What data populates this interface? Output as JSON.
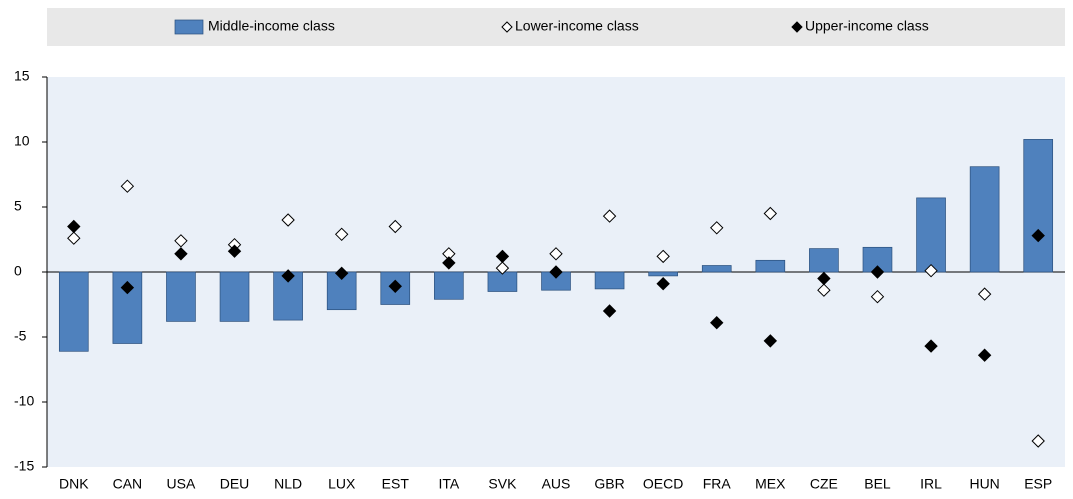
{
  "chart_data": {
    "type": "bar",
    "categories": [
      "DNK",
      "CAN",
      "USA",
      "DEU",
      "NLD",
      "LUX",
      "EST",
      "ITA",
      "SVK",
      "AUS",
      "GBR",
      "OECD",
      "FRA",
      "MEX",
      "CZE",
      "BEL",
      "IRL",
      "HUN",
      "ESP"
    ],
    "series": [
      {
        "name": "Middle-income class",
        "type": "bar",
        "color": "#4f81bd",
        "values": [
          -6.1,
          -5.5,
          -3.8,
          -3.8,
          -3.7,
          -2.9,
          -2.5,
          -2.1,
          -1.5,
          -1.4,
          -1.3,
          -0.3,
          0.5,
          0.9,
          1.8,
          1.9,
          5.7,
          8.1,
          10.2
        ]
      },
      {
        "name": "Lower-income class",
        "type": "diamond",
        "color": "#ffffff",
        "values": [
          2.6,
          6.6,
          2.4,
          2.1,
          4.0,
          2.9,
          3.5,
          1.4,
          0.3,
          1.4,
          4.3,
          1.2,
          3.4,
          4.5,
          -1.4,
          -1.9,
          0.1,
          -1.7,
          -13.0
        ]
      },
      {
        "name": "Upper-income class",
        "type": "diamond",
        "color": "#000000",
        "values": [
          3.5,
          -1.2,
          1.4,
          1.6,
          -0.3,
          -0.1,
          -1.1,
          0.7,
          1.2,
          0.0,
          -3.0,
          -0.9,
          -3.9,
          -5.3,
          -0.5,
          0.0,
          -5.7,
          -6.4,
          2.8
        ]
      }
    ],
    "ylim": [
      -15,
      15
    ],
    "yticks": [
      15,
      10,
      5,
      0,
      -5,
      -10,
      -15
    ],
    "grid": false
  }
}
